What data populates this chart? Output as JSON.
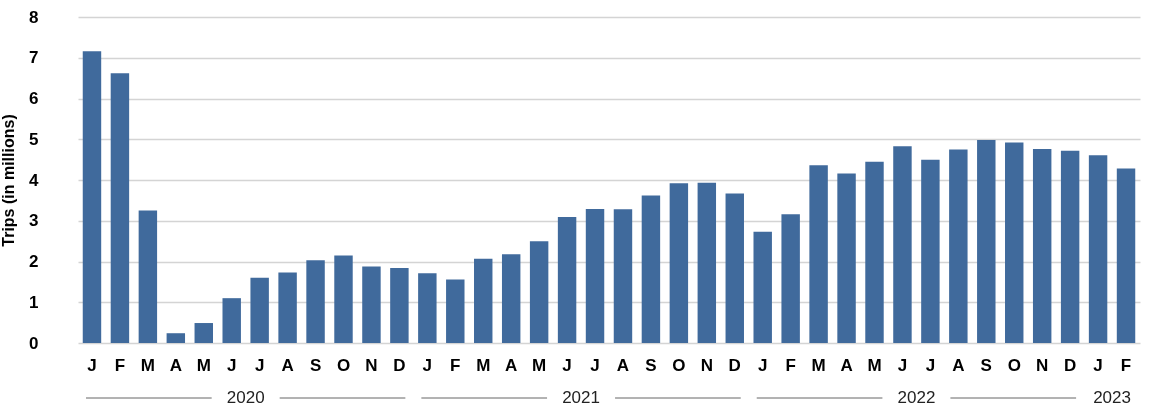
{
  "chart_data": {
    "type": "bar",
    "ylabel": "Trips (in millions)",
    "categories": [
      "J",
      "F",
      "M",
      "A",
      "M",
      "J",
      "J",
      "A",
      "S",
      "O",
      "N",
      "D",
      "J",
      "F",
      "M",
      "A",
      "M",
      "J",
      "J",
      "A",
      "S",
      "O",
      "N",
      "D",
      "J",
      "F",
      "M",
      "A",
      "M",
      "J",
      "J",
      "A",
      "S",
      "O",
      "N",
      "D",
      "J",
      "F"
    ],
    "values": [
      7.16,
      6.62,
      3.25,
      0.24,
      0.49,
      1.1,
      1.6,
      1.73,
      2.03,
      2.15,
      1.88,
      1.84,
      1.71,
      1.56,
      2.07,
      2.18,
      2.5,
      3.09,
      3.29,
      3.28,
      3.62,
      3.92,
      3.93,
      3.67,
      2.73,
      3.16,
      4.36,
      4.16,
      4.45,
      4.83,
      4.5,
      4.75,
      4.98,
      4.92,
      4.76,
      4.72,
      4.61,
      4.28
    ],
    "color": "#406a9c",
    "ylim": [
      0,
      8
    ],
    "yticks": [
      0,
      1,
      2,
      3,
      4,
      5,
      6,
      7,
      8
    ],
    "grid": "y",
    "annotations": [
      "2020",
      "2021",
      "2022",
      "2023"
    ]
  }
}
